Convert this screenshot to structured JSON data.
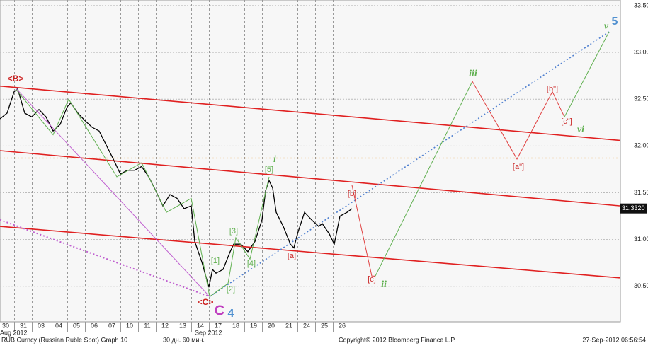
{
  "chart_data": {
    "type": "line",
    "xlim": [
      -0.32,
      34.68
    ],
    "ylim": [
      30.12,
      33.56
    ],
    "xticks": [
      {
        "value": 0,
        "label": "30"
      },
      {
        "value": 1,
        "label": "31"
      },
      {
        "value": 2,
        "label": "03"
      },
      {
        "value": 3,
        "label": "04"
      },
      {
        "value": 4,
        "label": "05"
      },
      {
        "value": 5,
        "label": "06"
      },
      {
        "value": 6,
        "label": "07"
      },
      {
        "value": 7,
        "label": "10"
      },
      {
        "value": 8,
        "label": "11"
      },
      {
        "value": 9,
        "label": "12"
      },
      {
        "value": 10,
        "label": "13"
      },
      {
        "value": 11,
        "label": "14"
      },
      {
        "value": 12,
        "label": "17"
      },
      {
        "value": 13,
        "label": "18"
      },
      {
        "value": 14,
        "label": "19"
      },
      {
        "value": 15,
        "label": "20"
      },
      {
        "value": 16,
        "label": "21"
      },
      {
        "value": 17,
        "label": "24"
      },
      {
        "value": 18,
        "label": "25"
      },
      {
        "value": 19,
        "label": "26"
      }
    ],
    "month_labels": [
      {
        "value": 0,
        "label": "Aug 2012"
      },
      {
        "value": 11,
        "label": "Sep 2012"
      }
    ],
    "yticks": [
      {
        "value": 30.5,
        "label": "30.5000"
      },
      {
        "value": 31,
        "label": "31.0000"
      },
      {
        "value": 31.5,
        "label": "31.5000"
      },
      {
        "value": 32,
        "label": "32.0000"
      },
      {
        "value": 32.5,
        "label": "32.5000"
      },
      {
        "value": 33,
        "label": "33.0000"
      },
      {
        "value": 33.5,
        "label": "33.5000"
      }
    ],
    "grid": true,
    "last_price": {
      "value": 31.332,
      "label": "31.3320"
    },
    "series": [
      {
        "color": "#000000",
        "width": 1.3,
        "x": [
          -0.32,
          0.08,
          0.48,
          0.68,
          1.08,
          1.48,
          1.88,
          2.28,
          2.68,
          3.08,
          3.48,
          3.68,
          4.08,
          4.48,
          4.88,
          5.28,
          5.68,
          6.08,
          6.48,
          6.88,
          7.28,
          7.68,
          8.08,
          8.48,
          8.88,
          9.28,
          9.68,
          10.08,
          10.48,
          10.68,
          11.08,
          11.48,
          11.68,
          11.88,
          12.28,
          12.68,
          12.88,
          13.28,
          13.68,
          14.08,
          14.48,
          14.68,
          14.88,
          15.08,
          15.28,
          15.68,
          16.08,
          16.28,
          16.48,
          16.88,
          17.28,
          17.68,
          17.88,
          18.28,
          18.56,
          18.88,
          19.28,
          19.56
        ],
        "values": [
          32.29,
          32.35,
          32.58,
          32.61,
          32.35,
          32.31,
          32.39,
          32.31,
          32.16,
          32.23,
          32.42,
          32.46,
          32.35,
          32.27,
          32.2,
          32.16,
          32.01,
          31.86,
          31.7,
          31.74,
          31.74,
          31.78,
          31.67,
          31.52,
          31.36,
          31.48,
          31.44,
          31.33,
          31.36,
          30.98,
          30.76,
          30.49,
          30.68,
          30.64,
          30.68,
          30.87,
          30.95,
          30.95,
          30.87,
          30.98,
          31.21,
          31.52,
          31.63,
          31.55,
          31.29,
          31.14,
          30.95,
          30.91,
          31.06,
          31.29,
          31.21,
          31.14,
          31.17,
          31.06,
          30.95,
          31.25,
          31.29,
          31.33
        ]
      },
      {
        "color": "#e02020",
        "width": 1.6,
        "x": [
          -0.32,
          34.68
        ],
        "values": [
          32.64,
          32.06
        ]
      },
      {
        "color": "#e02020",
        "width": 1.6,
        "x": [
          -0.32,
          34.68
        ],
        "values": [
          31.95,
          31.36
        ]
      },
      {
        "color": "#e02020",
        "width": 1.6,
        "x": [
          -0.32,
          34.68
        ],
        "values": [
          31.14,
          30.59
        ]
      },
      {
        "color": "#e8a040",
        "width": 1.2,
        "dash": true,
        "x": [
          -0.32,
          34.68
        ],
        "values": [
          31.87,
          31.87
        ]
      },
      {
        "color": "#c060d0",
        "width": 1,
        "x": [
          0.56,
          11.52
        ],
        "values": [
          32.62,
          30.39
        ]
      },
      {
        "color": "#c060d0",
        "width": 2,
        "dash": true,
        "x": [
          -0.32,
          11.52
        ],
        "values": [
          31.21,
          30.39
        ]
      },
      {
        "color": "#5080d0",
        "width": 1.6,
        "dash": true,
        "x": [
          11.52,
          34.08
        ],
        "values": [
          30.39,
          33.22
        ]
      },
      {
        "color": "#60b050",
        "width": 1,
        "x": [
          0.56,
          2.68,
          3.56,
          6.28,
          7.68,
          9.08,
          10.48,
          11.52
        ],
        "values": [
          32.61,
          32.12,
          32.5,
          31.67,
          31.82,
          31.29,
          31.44,
          30.39
        ]
      },
      {
        "color": "#60b050",
        "width": 1,
        "x": [
          11.52,
          12.56,
          13.0,
          13.8,
          14.88
        ],
        "values": [
          30.39,
          30.53,
          31.02,
          30.79,
          31.67
        ]
      },
      {
        "color": "#60b050",
        "width": 1,
        "x": [
          20.88,
          26.36
        ],
        "values": [
          30.61,
          32.69
        ]
      },
      {
        "color": "#60b050",
        "width": 1,
        "x": [
          31.56,
          34.08
        ],
        "values": [
          32.31,
          33.22
        ]
      },
      {
        "color": "#e04040",
        "width": 1,
        "x": [
          19.56,
          20.68,
          20.88
        ],
        "values": [
          31.58,
          30.61,
          30.61
        ]
      },
      {
        "color": "#e04040",
        "width": 1,
        "x": [
          26.36,
          28.88,
          30.88,
          31.56
        ],
        "values": [
          32.69,
          31.86,
          32.58,
          32.31
        ]
      }
    ],
    "annotations": [
      {
        "text": "<B>",
        "color": "#cc2020"
      },
      {
        "text": "<C>",
        "color": "#cc2020"
      },
      {
        "text": "C",
        "color": "#c040c0"
      },
      {
        "text": "4",
        "color": "#5090d0"
      },
      {
        "text": "i",
        "color": "#60b050"
      },
      {
        "text": "[5]",
        "color": "#60b050"
      },
      {
        "text": "[3]",
        "color": "#60b050"
      },
      {
        "text": "[1]",
        "color": "#60b050"
      },
      {
        "text": "[4]",
        "color": "#60b050"
      },
      {
        "text": "[2]",
        "color": "#60b050"
      },
      {
        "text": "[a]",
        "color": "#cc3030"
      },
      {
        "text": "[b]",
        "color": "#cc3030"
      },
      {
        "text": "[c]",
        "color": "#cc3030"
      },
      {
        "text": "ii",
        "color": "#60b050"
      },
      {
        "text": "iii",
        "color": "#60b050"
      },
      {
        "text": "[a\"]",
        "color": "#cc3030"
      },
      {
        "text": "[b\"]",
        "color": "#cc3030"
      },
      {
        "text": "[c\"]",
        "color": "#cc3030"
      },
      {
        "text": "vi",
        "color": "#60b050"
      },
      {
        "text": "v",
        "color": "#60b050"
      },
      {
        "text": "5",
        "color": "#5090d0"
      }
    ]
  },
  "footer": {
    "security": "RUB Curncy (Russian Ruble Spot) Graph 10",
    "period": "30 дн. 60 мин.",
    "copyright": "Copyright© 2012 Bloomberg Finance L.P.",
    "timestamp": "27-Sep-2012 06:56:54"
  }
}
